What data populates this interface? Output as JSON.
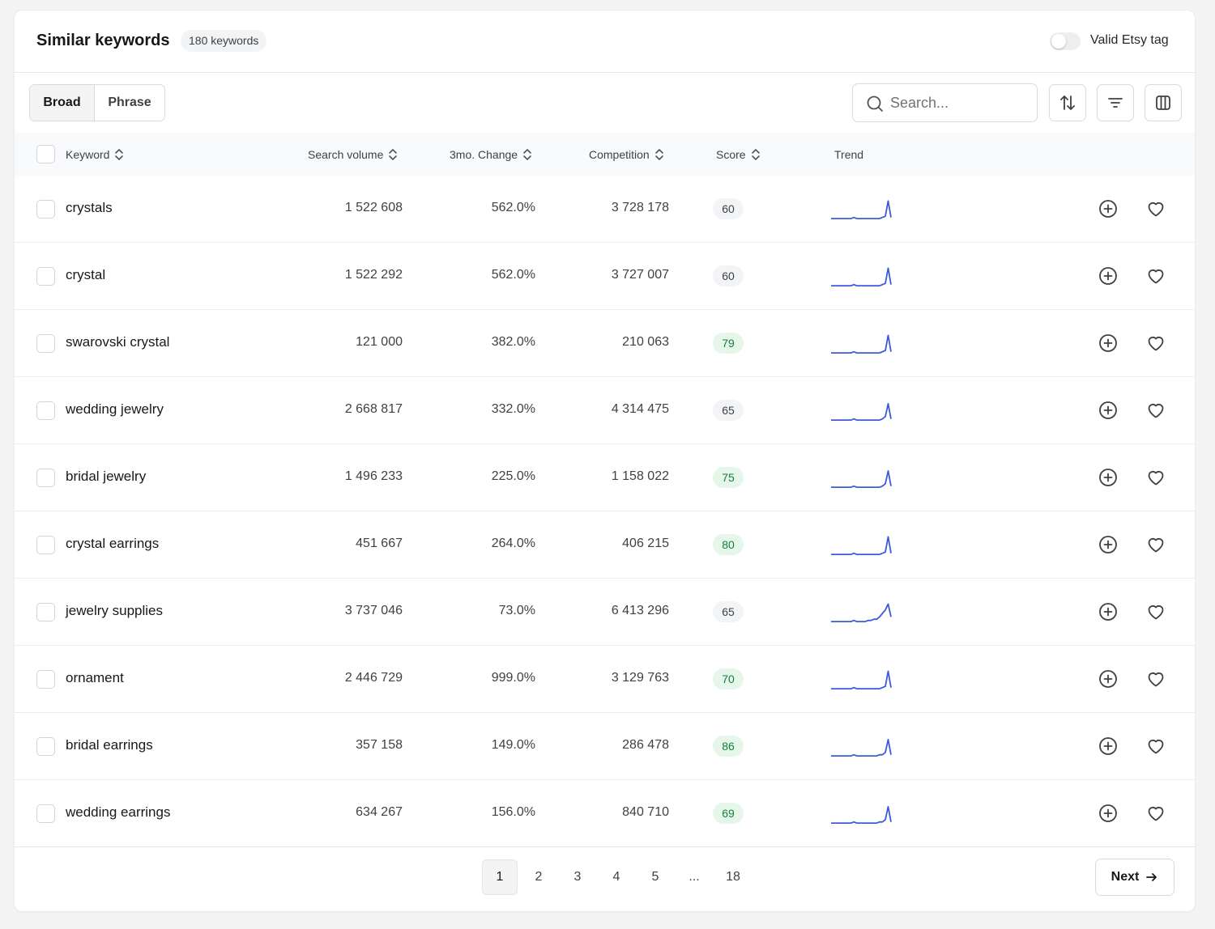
{
  "header": {
    "title": "Similar keywords",
    "count_badge": "180 keywords",
    "toggle_label": "Valid Etsy tag",
    "toggle_on": false
  },
  "toolbar": {
    "match_tabs": [
      "Broad",
      "Phrase"
    ],
    "active_tab": "Broad",
    "search_placeholder": "Search...",
    "search_value": "",
    "icons": [
      "sort-icon",
      "filter-icon",
      "columns-icon"
    ]
  },
  "table": {
    "columns": [
      "Keyword",
      "Search volume",
      "3mo. Change",
      "Competition",
      "Score",
      "Trend"
    ],
    "rows": [
      {
        "keyword": "crystals",
        "volume": "1 522 608",
        "change": "562.0%",
        "competition": "3 728 178",
        "score": "60",
        "score_status": "neutral",
        "trend": [
          2,
          2,
          2,
          2,
          2,
          2,
          2,
          2,
          3,
          2,
          2,
          2,
          2,
          2,
          2,
          2,
          2,
          2,
          3,
          4,
          17,
          3
        ]
      },
      {
        "keyword": "crystal",
        "volume": "1 522 292",
        "change": "562.0%",
        "competition": "3 727 007",
        "score": "60",
        "score_status": "neutral",
        "trend": [
          2,
          2,
          2,
          2,
          2,
          2,
          2,
          2,
          3,
          2,
          2,
          2,
          2,
          2,
          2,
          2,
          2,
          2,
          3,
          4,
          17,
          3
        ]
      },
      {
        "keyword": "swarovski crystal",
        "volume": "121 000",
        "change": "382.0%",
        "competition": "210 063",
        "score": "79",
        "score_status": "good",
        "trend": [
          2,
          2,
          2,
          2,
          2,
          2,
          2,
          2,
          3,
          2,
          2,
          2,
          2,
          2,
          2,
          2,
          2,
          2,
          3,
          4,
          17,
          3
        ]
      },
      {
        "keyword": "wedding jewelry",
        "volume": "2 668 817",
        "change": "332.0%",
        "competition": "4 314 475",
        "score": "65",
        "score_status": "neutral",
        "trend": [
          2,
          2,
          2,
          2,
          2,
          2,
          2,
          2,
          3,
          2,
          2,
          2,
          2,
          2,
          2,
          2,
          2,
          2,
          3,
          5,
          16,
          3
        ]
      },
      {
        "keyword": "bridal jewelry",
        "volume": "1 496 233",
        "change": "225.0%",
        "competition": "1 158 022",
        "score": "75",
        "score_status": "good",
        "trend": [
          2,
          2,
          2,
          2,
          2,
          2,
          2,
          2,
          3,
          2,
          2,
          2,
          2,
          2,
          2,
          2,
          2,
          2,
          3,
          5,
          16,
          3
        ]
      },
      {
        "keyword": "crystal earrings",
        "volume": "451 667",
        "change": "264.0%",
        "competition": "406 215",
        "score": "80",
        "score_status": "good",
        "trend": [
          2,
          2,
          2,
          2,
          2,
          2,
          2,
          2,
          3,
          2,
          2,
          2,
          2,
          2,
          2,
          2,
          2,
          2,
          3,
          4,
          17,
          3
        ]
      },
      {
        "keyword": "jewelry supplies",
        "volume": "3 737 046",
        "change": "73.0%",
        "competition": "6 413 296",
        "score": "65",
        "score_status": "neutral",
        "trend": [
          2,
          2,
          2,
          2,
          2,
          2,
          2,
          2,
          3,
          2,
          2,
          2,
          2,
          3,
          3,
          4,
          4,
          6,
          9,
          12,
          17,
          6
        ]
      },
      {
        "keyword": "ornament",
        "volume": "2 446 729",
        "change": "999.0%",
        "competition": "3 129 763",
        "score": "70",
        "score_status": "good",
        "trend": [
          2,
          2,
          2,
          2,
          2,
          2,
          2,
          2,
          3,
          2,
          2,
          2,
          2,
          2,
          2,
          2,
          2,
          2,
          3,
          4,
          17,
          3
        ]
      },
      {
        "keyword": "bridal earrings",
        "volume": "357 158",
        "change": "149.0%",
        "competition": "286 478",
        "score": "86",
        "score_status": "good",
        "trend": [
          2,
          2,
          2,
          2,
          2,
          2,
          2,
          2,
          3,
          2,
          2,
          2,
          2,
          2,
          2,
          2,
          2,
          3,
          3,
          5,
          16,
          3
        ]
      },
      {
        "keyword": "wedding earrings",
        "volume": "634 267",
        "change": "156.0%",
        "competition": "840 710",
        "score": "69",
        "score_status": "good",
        "trend": [
          2,
          2,
          2,
          2,
          2,
          2,
          2,
          2,
          3,
          2,
          2,
          2,
          2,
          2,
          2,
          2,
          2,
          3,
          3,
          5,
          16,
          3
        ]
      }
    ],
    "trend_color": "#3b5bdb",
    "row_actions": [
      "plus-circle-icon",
      "heart-icon"
    ]
  },
  "pagination": {
    "pages": [
      "1",
      "2",
      "3",
      "4",
      "5",
      "...",
      "18"
    ],
    "current": "1",
    "next_label": "Next"
  },
  "colors": {
    "score_neutral_bg": "#f3f4f6",
    "score_good_bg": "#e6f6ea",
    "score_good_text": "#15803d"
  }
}
